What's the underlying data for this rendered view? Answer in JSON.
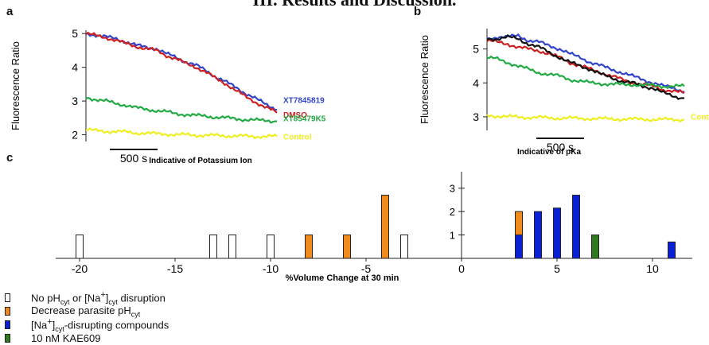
{
  "page_title": "III. Results and Discussion.",
  "panels": {
    "a": "a",
    "b": "b",
    "c": "c"
  },
  "chart_data": [
    {
      "id": "a",
      "type": "line",
      "ylabel": "Fluorescence Ratio",
      "xlabel": "Indicative of Potassium Ion",
      "scale_bar": "500 s",
      "ylim": [
        1.8,
        5.1
      ],
      "yticks": [
        "5",
        "4",
        "3",
        "2"
      ],
      "series": [
        {
          "name": "XT7845819",
          "color": "#3344cc",
          "values": [
            5.0,
            4.96,
            4.9,
            4.85,
            4.75,
            4.65,
            4.6,
            4.55,
            4.4,
            4.3,
            4.15,
            4.05,
            3.9,
            3.7,
            3.55,
            3.4,
            3.2,
            3.05,
            2.9,
            2.75
          ]
        },
        {
          "name": "DMSO",
          "color": "#cc2222",
          "values": [
            5.0,
            4.94,
            4.88,
            4.8,
            4.7,
            4.62,
            4.55,
            4.5,
            4.35,
            4.25,
            4.1,
            4.0,
            3.85,
            3.65,
            3.5,
            3.3,
            3.1,
            2.95,
            2.8,
            2.65
          ]
        },
        {
          "name": "XT85479K5",
          "color": "#22aa44",
          "values": [
            3.1,
            3.05,
            3.0,
            2.92,
            2.88,
            2.8,
            2.75,
            2.72,
            2.68,
            2.62,
            2.6,
            2.57,
            2.55,
            2.52,
            2.5,
            2.47,
            2.45,
            2.43,
            2.42,
            2.4
          ]
        },
        {
          "name": "Control",
          "color": "#eeee22",
          "values": [
            2.15,
            2.12,
            2.1,
            2.1,
            2.08,
            2.05,
            2.05,
            2.03,
            2.02,
            2.0,
            2.0,
            1.99,
            1.98,
            1.98,
            1.97,
            1.96,
            1.96,
            1.95,
            1.95,
            1.95
          ]
        }
      ]
    },
    {
      "id": "b",
      "type": "line",
      "ylabel": "Fluorescence Ratio",
      "xlabel": "Indicative of pKa",
      "scale_bar": "500 s",
      "ylim": [
        2.6,
        5.6
      ],
      "yticks": [
        "5",
        "4",
        "3"
      ],
      "series": [
        {
          "name": "",
          "color": "#3344cc",
          "values": [
            5.3,
            5.35,
            5.35,
            5.4,
            5.25,
            5.2,
            5.1,
            5.0,
            4.85,
            4.75,
            4.6,
            4.5,
            4.4,
            4.3,
            4.2,
            4.1,
            4.0,
            3.9,
            3.85,
            3.75
          ]
        },
        {
          "name": "",
          "color": "#cc2222",
          "values": [
            5.25,
            5.2,
            5.15,
            5.05,
            5.0,
            4.95,
            4.85,
            4.75,
            4.6,
            4.5,
            4.4,
            4.3,
            4.2,
            4.1,
            4.0,
            3.95,
            3.9,
            3.8,
            3.75,
            3.7
          ]
        },
        {
          "name": "",
          "color": "#111111",
          "values": [
            5.3,
            5.3,
            5.35,
            5.3,
            5.15,
            5.05,
            4.9,
            4.75,
            4.6,
            4.5,
            4.4,
            4.25,
            4.15,
            4.05,
            4.0,
            3.9,
            3.85,
            3.7,
            3.6,
            3.55
          ]
        },
        {
          "name": "",
          "color": "#22aa44",
          "values": [
            4.75,
            4.7,
            4.6,
            4.5,
            4.4,
            4.3,
            4.25,
            4.2,
            4.1,
            4.05,
            4.0,
            3.98,
            3.96,
            3.95,
            3.95,
            3.94,
            3.92,
            3.9,
            3.9,
            3.9
          ]
        },
        {
          "name": "Control",
          "color": "#eeee22",
          "values": [
            3.05,
            3.02,
            3.0,
            3.0,
            2.98,
            2.98,
            2.97,
            2.96,
            2.96,
            2.95,
            2.95,
            2.94,
            2.94,
            2.93,
            2.93,
            2.93,
            2.92,
            2.92,
            2.92,
            2.92
          ]
        }
      ]
    },
    {
      "id": "c",
      "type": "bar",
      "xlabel": "%Volume Change at 30 min",
      "xlim": [
        -22.5,
        12.5
      ],
      "ylim": [
        0,
        3.5
      ],
      "xticks": [
        -20,
        -15,
        -10,
        -5,
        0,
        5,
        10
      ],
      "xtick_labels": [
        "-20",
        "-15",
        "-10",
        "-5",
        "0",
        "5",
        "10"
      ],
      "yticks": [
        1,
        2,
        3
      ],
      "ytick_labels": [
        "1",
        "2",
        "3"
      ],
      "bars": [
        {
          "x": -20,
          "value": 1,
          "category": "none"
        },
        {
          "x": -13,
          "value": 1,
          "category": "none"
        },
        {
          "x": -12,
          "value": 1,
          "category": "none"
        },
        {
          "x": -10,
          "value": 1,
          "category": "none"
        },
        {
          "x": -8,
          "value": 1,
          "category": "decrease_ph"
        },
        {
          "x": -6,
          "value": 1,
          "category": "decrease_ph"
        },
        {
          "x": -4,
          "value": 2.7,
          "category": "decrease_ph"
        },
        {
          "x": -3,
          "value": 1,
          "category": "none"
        },
        {
          "x": 3,
          "value": 1,
          "category": "na_disrupting"
        },
        {
          "x": 3,
          "value": 1,
          "base": 1,
          "category": "decrease_ph"
        },
        {
          "x": 4,
          "value": 2,
          "category": "na_disrupting"
        },
        {
          "x": 5,
          "value": 2.15,
          "category": "na_disrupting"
        },
        {
          "x": 6,
          "value": 2.7,
          "category": "na_disrupting"
        },
        {
          "x": 7,
          "value": 1,
          "category": "kae609"
        },
        {
          "x": 11,
          "value": 0.7,
          "category": "na_disrupting"
        }
      ]
    }
  ],
  "categories": {
    "none": {
      "color": "#ffffff"
    },
    "decrease_ph": {
      "color": "#f08a1c"
    },
    "na_disrupting": {
      "color": "#0a1fd6"
    },
    "kae609": {
      "color": "#2f7a1f"
    }
  },
  "legend": [
    {
      "category": "none",
      "pre": "No pH",
      "sub1": "cyt",
      "mid": " or [Na",
      "sup": "+",
      "mid2": "]",
      "sub2": "cyt",
      "post": " disruption"
    },
    {
      "category": "decrease_ph",
      "pre": "Decrease parasite pH",
      "sub1": "cyt",
      "mid": "",
      "sup": "",
      "mid2": "",
      "sub2": "",
      "post": ""
    },
    {
      "category": "na_disrupting",
      "pre": "[Na",
      "sup": "+",
      "mid": "]",
      "sub1": "cyt",
      "mid2": "",
      "sub2": "",
      "post": "-disrupting compounds"
    },
    {
      "category": "kae609",
      "pre": "10 nM KAE609",
      "sub1": "",
      "mid": "",
      "sup": "",
      "mid2": "",
      "sub2": "",
      "post": ""
    }
  ]
}
